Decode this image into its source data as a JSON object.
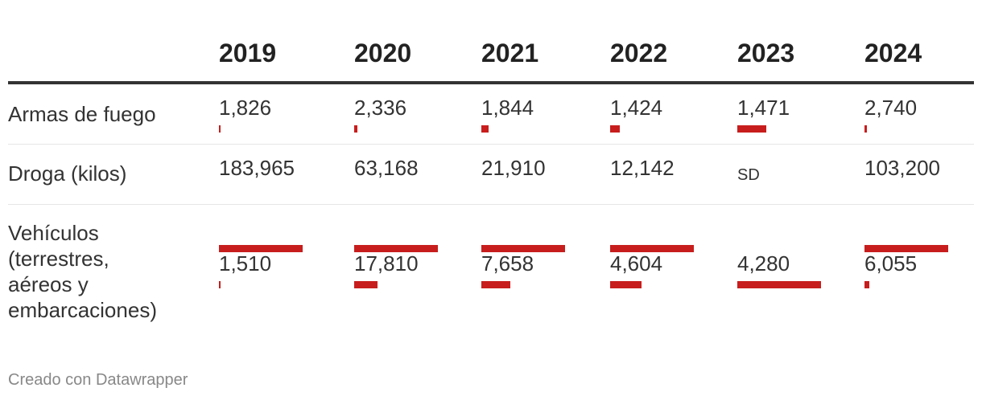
{
  "chart_data": {
    "type": "table",
    "columns": [
      "2019",
      "2020",
      "2021",
      "2022",
      "2023",
      "2024"
    ],
    "rows": [
      {
        "label": "Armas de fuego",
        "values": [
          "1,826",
          "2,336",
          "1,844",
          "1,424",
          "1,471",
          "2,740"
        ]
      },
      {
        "label": "Droga (kilos)",
        "values": [
          "183,965",
          "63,168",
          "21,910",
          "12,142",
          "SD",
          "103,200"
        ]
      },
      {
        "label": "Vehículos (terrestres, aéreos y embarcaciones)",
        "values": [
          "1,510",
          "17,810",
          "7,658",
          "4,604",
          "4,280",
          "6,055"
        ]
      }
    ],
    "bar_color": "#c71e1d"
  },
  "footer": "Creado con Datawrapper"
}
